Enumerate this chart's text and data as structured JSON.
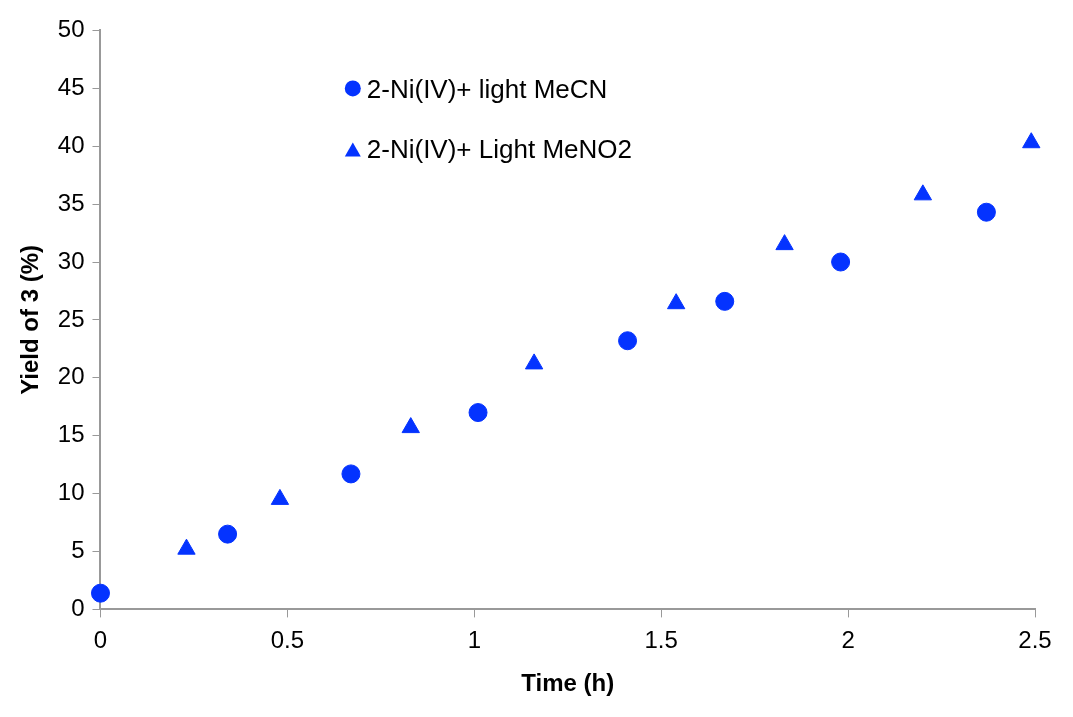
{
  "chart_data": {
    "type": "scatter",
    "xlabel": "Time (h)",
    "ylabel": "Yield of 3 (%)",
    "xlim": [
      0,
      2.5
    ],
    "xticks": [
      0,
      0.5,
      1,
      1.5,
      2,
      2.5
    ],
    "ylim": [
      0,
      50
    ],
    "yticks": [
      0,
      5,
      10,
      15,
      20,
      25,
      30,
      35,
      40,
      45,
      50
    ],
    "grid": false,
    "legend": "top",
    "series": [
      {
        "name": "2-Ni(IV)+ light MeCN",
        "color": "#0433ff",
        "marker": "circle",
        "x": [
          0,
          0.34,
          0.67,
          1.01,
          1.41,
          1.67,
          1.98,
          2.37
        ],
        "values": [
          1.4,
          6.5,
          11.7,
          17.0,
          23.2,
          26.6,
          30.0,
          34.3
        ]
      },
      {
        "name": "2-Ni(IV)+ Light MeNO2",
        "color": "#0433ff",
        "marker": "triangle",
        "x": [
          0.23,
          0.48,
          0.83,
          1.16,
          1.54,
          1.83,
          2.2,
          2.49
        ],
        "values": [
          5.2,
          9.5,
          15.7,
          21.2,
          26.4,
          31.5,
          35.8,
          40.3
        ]
      }
    ]
  }
}
